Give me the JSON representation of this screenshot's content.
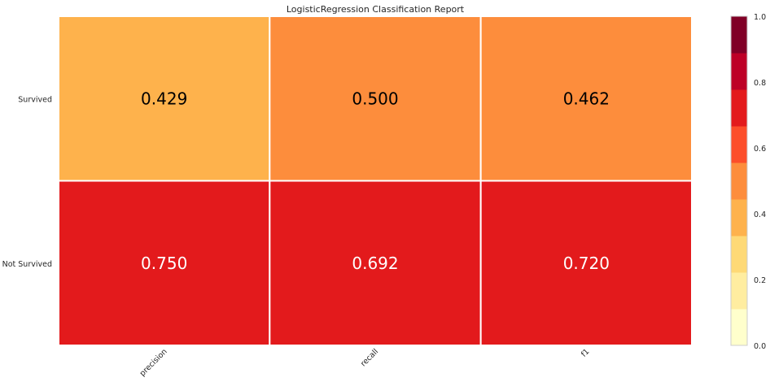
{
  "chart_data": {
    "type": "heatmap",
    "title": "LogisticRegression Classification Report",
    "columns": [
      "precision",
      "recall",
      "f1"
    ],
    "rows": [
      "Survived",
      "Not Survived"
    ],
    "values": [
      [
        0.429,
        0.5,
        0.462
      ],
      [
        0.75,
        0.692,
        0.72
      ]
    ],
    "value_labels": [
      [
        "0.429",
        "0.500",
        "0.462"
      ],
      [
        "0.750",
        "0.692",
        "0.720"
      ]
    ],
    "colorbar": {
      "range": [
        0.0,
        1.0
      ],
      "ticks": [
        "0.0",
        "0.2",
        "0.4",
        "0.6",
        "0.8",
        "1.0"
      ],
      "colormap": "YlOrRd",
      "colors": [
        "#ffffcc",
        "#ffeda0",
        "#fed976",
        "#feb24c",
        "#fd8d3c",
        "#fc4e2a",
        "#e31a1c",
        "#bd0026",
        "#800026"
      ]
    },
    "grid": false,
    "legend": "colorbar-right"
  }
}
